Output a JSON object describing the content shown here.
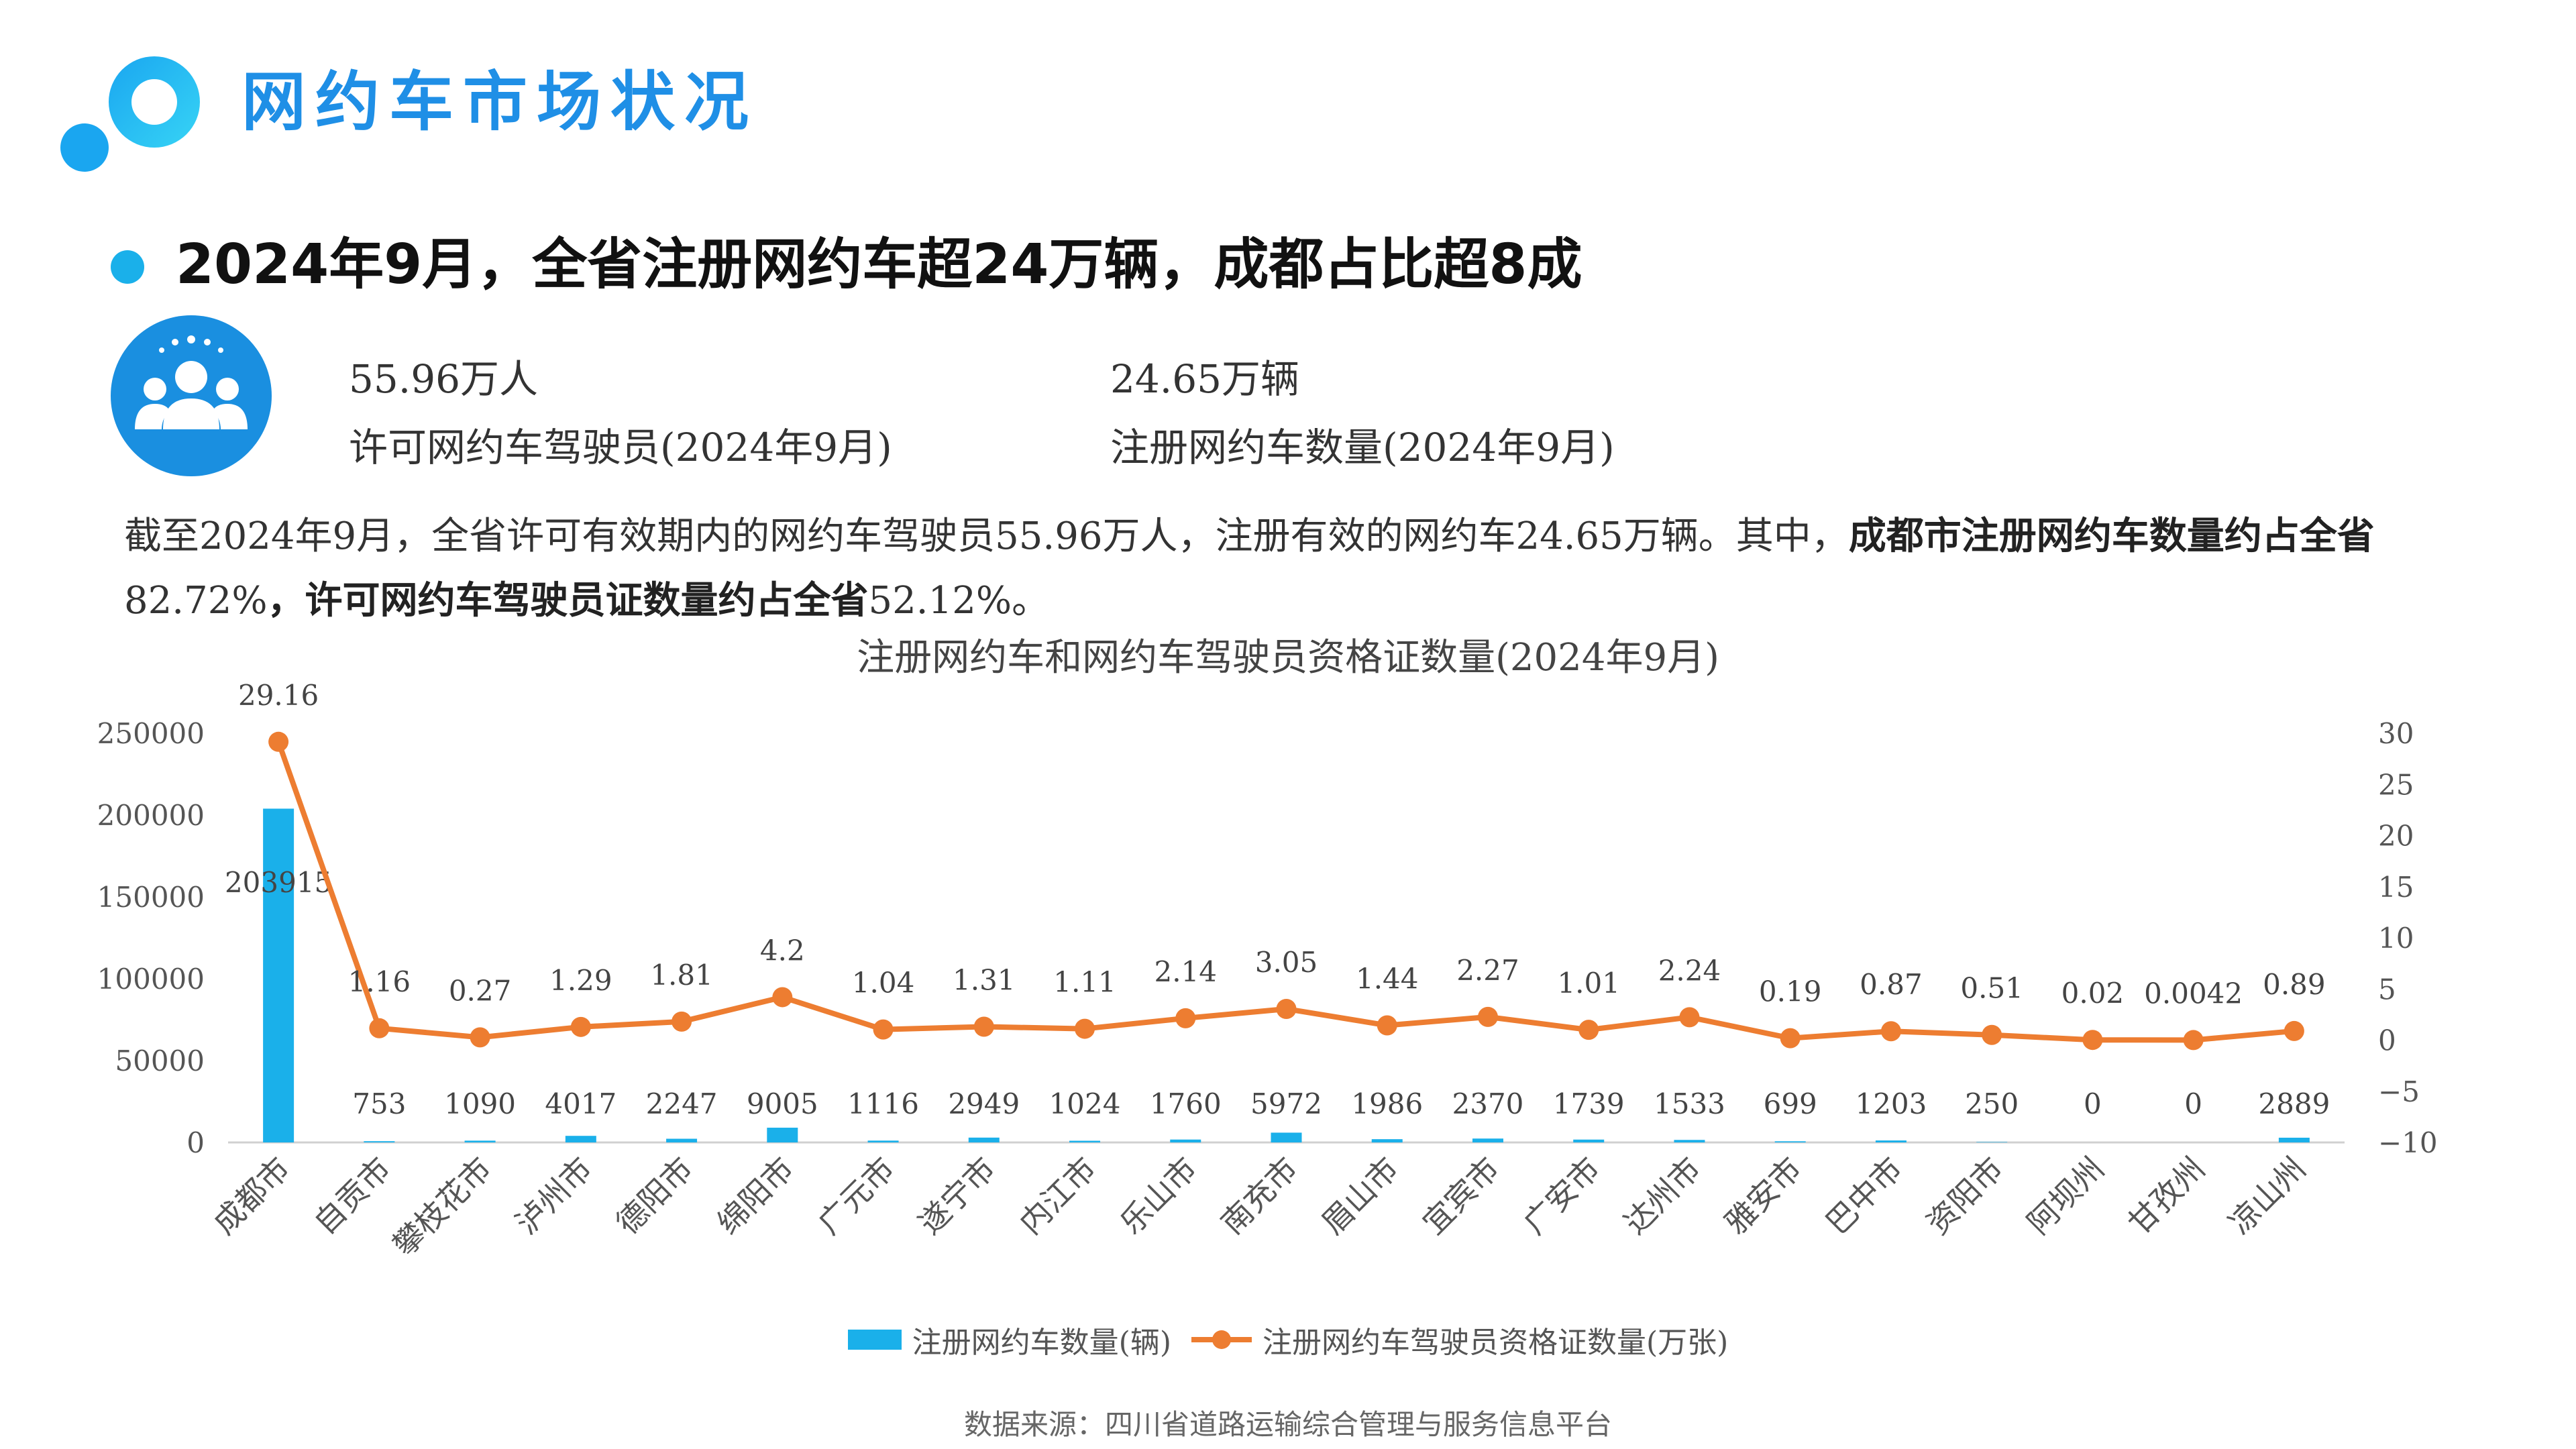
{
  "header": {
    "title": "网约车市场状况",
    "headline": "2024年9月，全省注册网约车超24万辆，成都占比超8成"
  },
  "stats": [
    {
      "value": "55.96万人",
      "label": "许可网约车驾驶员(2024年9月)"
    },
    {
      "value": "24.65万辆",
      "label": "注册网约车数量(2024年9月)"
    }
  ],
  "paragraph": {
    "plain": "截至2024年9月，全省许可有效期内的网约车驾驶员55.96万人，注册有效的网约车24.65万辆。其中，",
    "bold1": "成都市注册网约车数量约占全省",
    "val1": "82.72%",
    "bold2": "，许可网约车驾驶员证数量约占全省",
    "val2": "52.12%",
    "end": "。"
  },
  "chart_data": {
    "type": "bar+line",
    "title": "注册网约车和网约车驾驶员资格证数量(2024年9月)",
    "categories": [
      "成都市",
      "自贡市",
      "攀枝花市",
      "泸州市",
      "德阳市",
      "绵阳市",
      "广元市",
      "遂宁市",
      "内江市",
      "乐山市",
      "南充市",
      "眉山市",
      "宜宾市",
      "广安市",
      "达州市",
      "雅安市",
      "巴中市",
      "资阳市",
      "阿坝州",
      "甘孜州",
      "凉山州"
    ],
    "series": [
      {
        "name": "注册网约车数量(辆)",
        "type": "bar",
        "axis": "left",
        "color": "#1ab0ea",
        "values": [
          203915,
          753,
          1090,
          4017,
          2247,
          9005,
          1116,
          2949,
          1024,
          1760,
          5972,
          1986,
          2370,
          1739,
          1533,
          699,
          1203,
          250,
          0,
          0,
          2889
        ],
        "labels": [
          "203915",
          "753",
          "1090",
          "4017",
          "2247",
          "9005",
          "1116",
          "2949",
          "1024",
          "1760",
          "5972",
          "1986",
          "2370",
          "1739",
          "1533",
          "699",
          "1203",
          "250",
          "0",
          "0",
          "2889"
        ]
      },
      {
        "name": "注册网约车驾驶员资格证数量(万张)",
        "type": "line",
        "axis": "right",
        "color": "#ed7d31",
        "values": [
          29.16,
          1.16,
          0.27,
          1.29,
          1.81,
          4.2,
          1.04,
          1.31,
          1.11,
          2.14,
          3.05,
          1.44,
          2.27,
          1.01,
          2.24,
          0.19,
          0.87,
          0.51,
          0.02,
          0.0042,
          0.89
        ],
        "labels": [
          "29.16",
          "1.16",
          "0.27",
          "1.29",
          "1.81",
          "4.2",
          "1.04",
          "1.31",
          "1.11",
          "2.14",
          "3.05",
          "1.44",
          "2.27",
          "1.01",
          "2.24",
          "0.19",
          "0.87",
          "0.51",
          "0.02",
          "0.0042",
          "0.89"
        ]
      }
    ],
    "y_left": {
      "range": [
        0,
        250000
      ],
      "ticks": [
        "0",
        "50000",
        "100000",
        "150000",
        "200000",
        "250000"
      ]
    },
    "y_right": {
      "range": [
        -10,
        30
      ],
      "ticks": [
        "−10",
        "−5",
        "0",
        "5",
        "10",
        "15",
        "20",
        "25",
        "30"
      ]
    },
    "legend": "bottom",
    "grid": false
  },
  "source": "数据来源：四川省道路运输综合管理与服务信息平台",
  "colors": {
    "accent": "#1f8fe6",
    "bar": "#1ab0ea",
    "line": "#ed7d31"
  }
}
